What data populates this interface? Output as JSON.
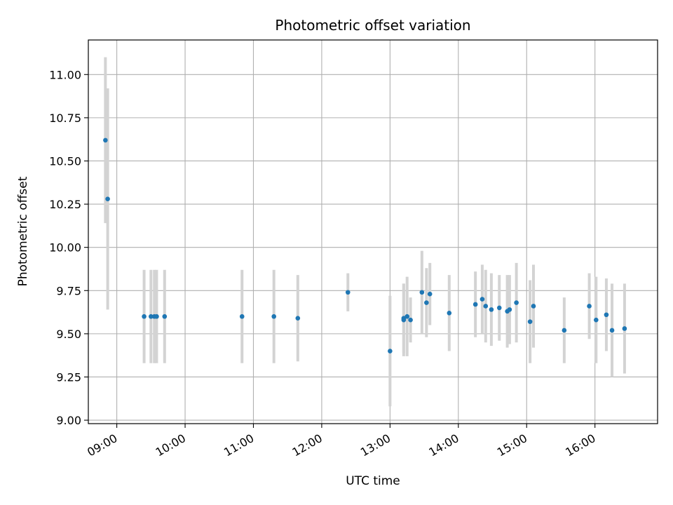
{
  "chart_data": {
    "type": "scatter",
    "title": "Photometric offset variation",
    "xlabel": "UTC time",
    "ylabel": "Photometric offset",
    "x_ticks": [
      "09:00",
      "10:00",
      "11:00",
      "12:00",
      "13:00",
      "14:00",
      "15:00",
      "16:00"
    ],
    "y_ticks": [
      "9.00",
      "9.25",
      "9.50",
      "9.75",
      "10.00",
      "10.25",
      "10.50",
      "10.75",
      "11.00"
    ],
    "xlim": [
      "08:35",
      "16:55"
    ],
    "ylim": [
      8.98,
      11.2
    ],
    "grid": true,
    "colors": {
      "points": "#1f77b4",
      "errorbars": "#d3d3d3",
      "grid": "#b0b0b0"
    },
    "series": [
      {
        "points": [
          {
            "x": "08:50",
            "y": 10.62,
            "err": 0.48
          },
          {
            "x": "08:52",
            "y": 10.28,
            "err": 0.64
          },
          {
            "x": "09:24",
            "y": 9.6,
            "err": 0.27
          },
          {
            "x": "09:30",
            "y": 9.6,
            "err": 0.27
          },
          {
            "x": "09:33",
            "y": 9.6,
            "err": 0.27
          },
          {
            "x": "09:35",
            "y": 9.6,
            "err": 0.27
          },
          {
            "x": "09:42",
            "y": 9.6,
            "err": 0.27
          },
          {
            "x": "10:50",
            "y": 9.6,
            "err": 0.27
          },
          {
            "x": "11:18",
            "y": 9.6,
            "err": 0.27
          },
          {
            "x": "11:39",
            "y": 9.59,
            "err": 0.25
          },
          {
            "x": "12:23",
            "y": 9.74,
            "err": 0.11
          },
          {
            "x": "13:00",
            "y": 9.4,
            "err": 0.32
          },
          {
            "x": "13:12",
            "y": 9.58,
            "err": 0.21
          },
          {
            "x": "13:12",
            "y": 9.59,
            "err": 0.2
          },
          {
            "x": "13:15",
            "y": 9.6,
            "err": 0.23
          },
          {
            "x": "13:18",
            "y": 9.58,
            "err": 0.13
          },
          {
            "x": "13:28",
            "y": 9.74,
            "err": 0.24
          },
          {
            "x": "13:32",
            "y": 9.68,
            "err": 0.2
          },
          {
            "x": "13:35",
            "y": 9.73,
            "err": 0.18
          },
          {
            "x": "13:52",
            "y": 9.62,
            "err": 0.22
          },
          {
            "x": "14:15",
            "y": 9.67,
            "err": 0.19
          },
          {
            "x": "14:21",
            "y": 9.7,
            "err": 0.2
          },
          {
            "x": "14:24",
            "y": 9.66,
            "err": 0.21
          },
          {
            "x": "14:29",
            "y": 9.64,
            "err": 0.21
          },
          {
            "x": "14:36",
            "y": 9.65,
            "err": 0.19
          },
          {
            "x": "14:43",
            "y": 9.63,
            "err": 0.21
          },
          {
            "x": "14:45",
            "y": 9.64,
            "err": 0.2
          },
          {
            "x": "14:51",
            "y": 9.68,
            "err": 0.23
          },
          {
            "x": "15:03",
            "y": 9.57,
            "err": 0.24
          },
          {
            "x": "15:06",
            "y": 9.66,
            "err": 0.24
          },
          {
            "x": "15:33",
            "y": 9.52,
            "err": 0.19
          },
          {
            "x": "15:55",
            "y": 9.66,
            "err": 0.19
          },
          {
            "x": "16:01",
            "y": 9.58,
            "err": 0.25
          },
          {
            "x": "16:10",
            "y": 9.61,
            "err": 0.21
          },
          {
            "x": "16:15",
            "y": 9.52,
            "err": 0.27
          },
          {
            "x": "16:26",
            "y": 9.53,
            "err": 0.26
          }
        ]
      }
    ]
  }
}
